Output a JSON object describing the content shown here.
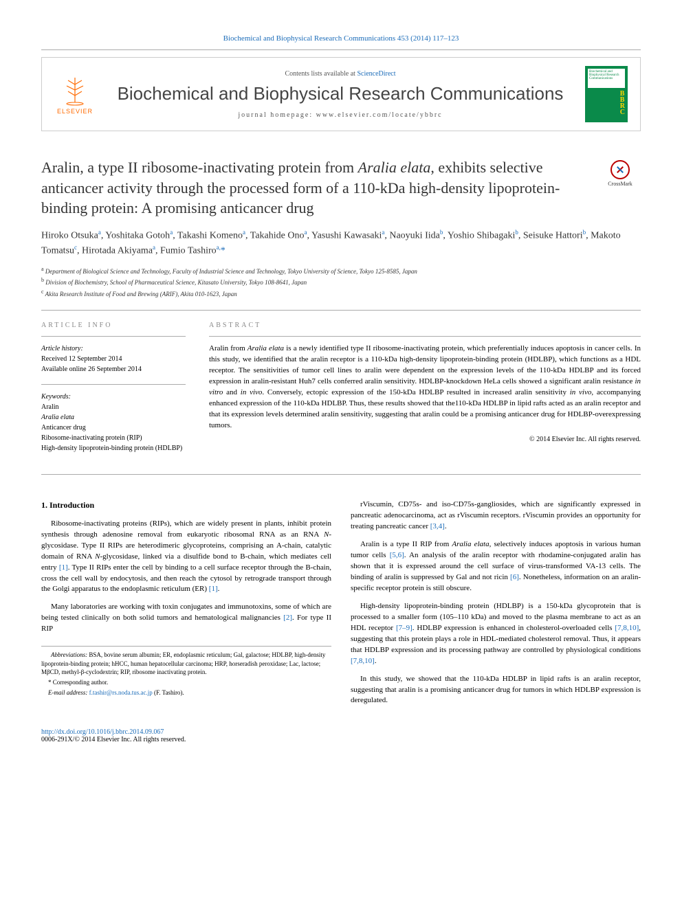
{
  "header": {
    "citation": "Biochemical and Biophysical Research Communications 453 (2014) 117–123",
    "contents_prefix": "Contents lists available at ",
    "contents_link": "ScienceDirect",
    "journal_name": "Biochemical and Biophysical Research Communications",
    "homepage_prefix": "journal homepage: ",
    "homepage_url": "www.elsevier.com/locate/ybbrc",
    "publisher": "ELSEVIER",
    "cover_title": "Biochemical and Biophysical Research Communications",
    "cover_abbrev": "BBRC"
  },
  "crossmark": {
    "label": "CrossMark"
  },
  "article": {
    "title_html": "Aralin, a type II ribosome-inactivating protein from <em>Aralia elata</em>, exhibits selective anticancer activity through the processed form of a 110-kDa high-density lipoprotein-binding protein: A promising anticancer drug",
    "authors_html": "Hiroko Otsuka<sup>a</sup>, Yoshitaka Gotoh<sup>a</sup>, Takashi Komeno<sup>a</sup>, Takahide Ono<sup>a</sup>, Yasushi Kawasaki<sup>a</sup>, Naoyuki Iida<sup>b</sup>, Yoshio Shibagaki<sup>b</sup>, Seisuke Hattori<sup>b</sup>, Makoto Tomatsu<sup>c</sup>, Hirotada Akiyama<sup>a</sup>, Fumio Tashiro<sup>a,</sup><a href=\"#\">*</a>",
    "affiliations": [
      {
        "sup": "a",
        "text": "Department of Biological Science and Technology, Faculty of Industrial Science and Technology, Tokyo University of Science, Tokyo 125-8585, Japan"
      },
      {
        "sup": "b",
        "text": "Division of Biochemistry, School of Pharmaceutical Science, Kitasato University, Tokyo 108-8641, Japan"
      },
      {
        "sup": "c",
        "text": "Akita Research Institute of Food and Brewing (ARIF), Akita 010-1623, Japan"
      }
    ]
  },
  "info": {
    "section_label": "ARTICLE INFO",
    "history_label": "Article history:",
    "received": "Received 12 September 2014",
    "online": "Available online 26 September 2014",
    "keywords_label": "Keywords:",
    "keywords": [
      "Aralin",
      "Aralia elata",
      "Anticancer drug",
      "Ribosome-inactivating protein (RIP)",
      "High-density lipoprotein-binding protein (HDLBP)"
    ]
  },
  "abstract": {
    "section_label": "ABSTRACT",
    "text_html": "Aralin from <em>Aralia elata</em> is a newly identified type II ribosome-inactivating protein, which preferentially induces apoptosis in cancer cells. In this study, we identified that the aralin receptor is a 110-kDa high-density lipoprotein-binding protein (HDLBP), which functions as a HDL receptor. The sensitivities of tumor cell lines to aralin were dependent on the expression levels of the 110-kDa HDLBP and its forced expression in aralin-resistant Huh7 cells conferred aralin sensitivity. HDLBP-knockdown HeLa cells showed a significant aralin resistance <em>in vitro</em> and <em>in vivo</em>. Conversely, ectopic expression of the 150-kDa HDLBP resulted in increased aralin sensitivity <em>in vivo</em>, accompanying enhanced expression of the 110-kDa HDLBP. Thus, these results showed that the110-kDa HDLBP in lipid rafts acted as an aralin receptor and that its expression levels determined aralin sensitivity, suggesting that aralin could be a promising anticancer drug for HDLBP-overexpressing tumors.",
    "copyright": "© 2014 Elsevier Inc. All rights reserved."
  },
  "body": {
    "intro_heading": "1. Introduction",
    "left_paras": [
      "Ribosome-inactivating proteins (RIPs), which are widely present in plants, inhibit protein synthesis through adenosine removal from eukaryotic ribosomal RNA as an RNA <em>N</em>-glycosidase. Type II RIPs are heterodimeric glycoproteins, comprising an A-chain, catalytic domain of RNA <em>N</em>-glycosidase, linked via a disulfide bond to B-chain, which mediates cell entry <a href=\"#\">[1]</a>. Type II RIPs enter the cell by binding to a cell surface receptor through the B-chain, cross the cell wall by endocytosis, and then reach the cytosol by retrograde transport through the Golgi apparatus to the endoplasmic reticulum (ER) <a href=\"#\">[1]</a>.",
      "Many laboratories are working with toxin conjugates and immunotoxins, some of which are being tested clinically on both solid tumors and hematological malignancies <a href=\"#\">[2]</a>. For type II RIP"
    ],
    "right_paras": [
      "rViscumin, CD75s- and iso-CD75s-gangliosides, which are significantly expressed in pancreatic adenocarcinoma, act as rViscumin receptors. rViscumin provides an opportunity for treating pancreatic cancer <a href=\"#\">[3,4]</a>.",
      "Aralin is a type II RIP from <em>Aralia elata</em>, selectively induces apoptosis in various human tumor cells <a href=\"#\">[5,6]</a>. An analysis of the aralin receptor with rhodamine-conjugated aralin has shown that it is expressed around the cell surface of virus-transformed VA-13 cells. The binding of aralin is suppressed by Gal and not ricin <a href=\"#\">[6]</a>. Nonetheless, information on an aralin-specific receptor protein is still obscure.",
      "High-density lipoprotein-binding protein (HDLBP) is a 150-kDa glycoprotein that is processed to a smaller form (105–110 kDa) and moved to the plasma membrane to act as an HDL receptor <a href=\"#\">[7–9]</a>. HDLBP expression is enhanced in cholesterol-overloaded cells <a href=\"#\">[7,8,10]</a>, suggesting that this protein plays a role in HDL-mediated cholesterol removal. Thus, it appears that HDLBP expression and its processing pathway are controlled by physiological conditions <a href=\"#\">[7,8,10]</a>.",
      "In this study, we showed that the 110-kDa HDLBP in lipid rafts is an aralin receptor, suggesting that aralin is a promising anticancer drug for tumors in which HDLBP expression is deregulated."
    ]
  },
  "footnotes": {
    "abbrev_html": "<em>Abbreviations:</em> BSA, bovine serum albumin; ER, endoplasmic reticulum; Gal, galactose; HDLBP, high-density lipoprotein-binding protein; hHCC, human hepatocellular carcinoma; HRP, horseradish peroxidase; Lac, lactose; MβCD, methyl-β-cyclodextrin; RIP, ribosome inactivating protein.",
    "corr_label": "* Corresponding author.",
    "email_label": "E-mail address:",
    "email": "f.tashir@rs.noda.tus.ac.jp",
    "email_person": "(F. Tashiro)."
  },
  "footer": {
    "doi": "http://dx.doi.org/10.1016/j.bbrc.2014.09.067",
    "issn_line": "0006-291X/© 2014 Elsevier Inc. All rights reserved."
  },
  "colors": {
    "link": "#1a6bb8",
    "publisher_orange": "#ff6a00",
    "cover_green": "#0a8a4a",
    "cover_yellow": "#ffd400",
    "rule": "#aaaaaa",
    "text_muted": "#555555"
  }
}
